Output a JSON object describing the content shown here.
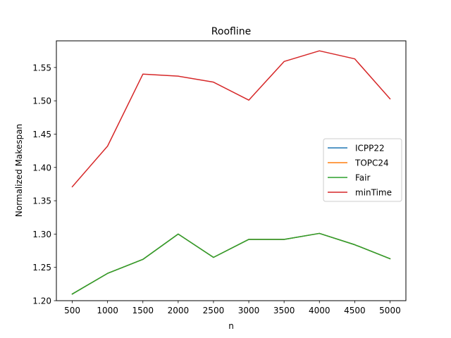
{
  "chart_data": {
    "type": "line",
    "title": "Roofline",
    "xlabel": "n",
    "ylabel": "Normalized Makespan",
    "x": [
      500,
      1000,
      1500,
      2000,
      2500,
      3000,
      3500,
      4000,
      4500,
      5000
    ],
    "xlim": [
      275,
      5225
    ],
    "ylim": [
      1.2,
      1.59
    ],
    "xticks": [
      "500",
      "1000",
      "1500",
      "2000",
      "2500",
      "3000",
      "3500",
      "4000",
      "4500",
      "5000"
    ],
    "yticks": [
      "1.20",
      "1.25",
      "1.30",
      "1.35",
      "1.40",
      "1.45",
      "1.50",
      "1.55"
    ],
    "grid": false,
    "legend_position": "center-right",
    "series": [
      {
        "name": "ICPP22",
        "color": "#1f77b4",
        "values": [
          1.21,
          1.241,
          1.262,
          1.3,
          1.265,
          1.292,
          1.292,
          1.301,
          1.284,
          1.263
        ]
      },
      {
        "name": "TOPC24",
        "color": "#ff7f0e",
        "values": [
          1.21,
          1.241,
          1.262,
          1.3,
          1.265,
          1.292,
          1.292,
          1.301,
          1.284,
          1.263
        ]
      },
      {
        "name": "Fair",
        "color": "#2ca02c",
        "values": [
          1.21,
          1.241,
          1.262,
          1.3,
          1.265,
          1.292,
          1.292,
          1.301,
          1.284,
          1.263
        ]
      },
      {
        "name": "minTime",
        "color": "#d62728",
        "values": [
          1.371,
          1.432,
          1.54,
          1.537,
          1.528,
          1.501,
          1.559,
          1.575,
          1.563,
          1.503
        ]
      }
    ]
  }
}
